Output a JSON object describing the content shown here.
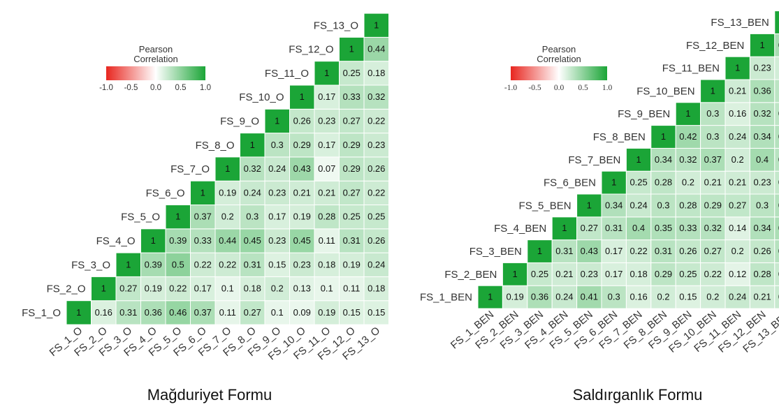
{
  "legend": {
    "title_line1": "Pearson",
    "title_line2": "Correlation",
    "ticks": [
      "-1.0",
      "-0.5",
      "0.0",
      "0.5",
      "1.0"
    ]
  },
  "colors": {
    "negative": "#e8261f",
    "zero": "#ffffff",
    "positive": "#1ba537",
    "diagonal": "#1ba537"
  },
  "chart_data": [
    {
      "type": "heatmap",
      "title": "Mağduriyet Formu",
      "variables": [
        "FS_1_O",
        "FS_2_O",
        "FS_3_O",
        "FS_4_O",
        "FS_5_O",
        "FS_6_O",
        "FS_7_O",
        "FS_8_O",
        "FS_9_O",
        "FS_10_O",
        "FS_11_O",
        "FS_12_O",
        "FS_13_O"
      ],
      "value_range": [
        -1.0,
        1.0
      ],
      "rows": [
        [
          1,
          0.16,
          0.31,
          0.36,
          0.46,
          0.37,
          0.11,
          0.27,
          0.1,
          0.09,
          0.19,
          0.15,
          0.15
        ],
        [
          1,
          0.27,
          0.19,
          0.22,
          0.17,
          0.1,
          0.18,
          0.2,
          0.13,
          0.1,
          0.11,
          0.18
        ],
        [
          1,
          0.39,
          0.5,
          0.22,
          0.22,
          0.31,
          0.15,
          0.23,
          0.18,
          0.19,
          0.24
        ],
        [
          1,
          0.39,
          0.33,
          0.44,
          0.45,
          0.23,
          0.45,
          0.11,
          0.31,
          0.26
        ],
        [
          1,
          0.37,
          0.2,
          0.3,
          0.17,
          0.19,
          0.28,
          0.25,
          0.25
        ],
        [
          1,
          0.19,
          0.24,
          0.23,
          0.21,
          0.21,
          0.27,
          0.22
        ],
        [
          1,
          0.32,
          0.24,
          0.43,
          0.07,
          0.29,
          0.26
        ],
        [
          1,
          0.3,
          0.29,
          0.17,
          0.29,
          0.23
        ],
        [
          1,
          0.26,
          0.23,
          0.27,
          0.22
        ],
        [
          1,
          0.17,
          0.33,
          0.32
        ],
        [
          1,
          0.25,
          0.18
        ],
        [
          1,
          0.44
        ],
        [
          1
        ]
      ]
    },
    {
      "type": "heatmap",
      "title": "Saldırganlık Formu",
      "variables": [
        "FS_1_BEN",
        "FS_2_BEN",
        "FS_3_BEN",
        "FS_4_BEN",
        "FS_5_BEN",
        "FS_6_BEN",
        "FS_7_BEN",
        "FS_8_BEN",
        "FS_9_BEN",
        "FS_10_BEN",
        "FS_11_BEN",
        "FS_12_BEN",
        "FS_13_BEN"
      ],
      "value_range": [
        -1.0,
        1.0
      ],
      "rows": [
        [
          1,
          0.19,
          0.36,
          0.24,
          0.41,
          0.3,
          0.16,
          0.2,
          0.15,
          0.2,
          0.24,
          0.21,
          0.24
        ],
        [
          1,
          0.25,
          0.21,
          0.23,
          0.17,
          0.18,
          0.29,
          0.25,
          0.22,
          0.12,
          0.28,
          0.24
        ],
        [
          1,
          0.31,
          0.43,
          0.17,
          0.22,
          0.31,
          0.26,
          0.27,
          0.2,
          0.26,
          0.32
        ],
        [
          1,
          0.27,
          0.31,
          0.4,
          0.35,
          0.33,
          0.32,
          0.14,
          0.34,
          0.37
        ],
        [
          1,
          0.34,
          0.24,
          0.3,
          0.28,
          0.29,
          0.27,
          0.3,
          0.33
        ],
        [
          1,
          0.25,
          0.28,
          0.2,
          0.21,
          0.21,
          0.23,
          0.26
        ],
        [
          1,
          0.34,
          0.32,
          0.37,
          0.2,
          0.4,
          0.31
        ],
        [
          1,
          0.42,
          0.3,
          0.24,
          0.34,
          0.33
        ],
        [
          1,
          0.3,
          0.16,
          0.32,
          0.29
        ],
        [
          1,
          0.21,
          0.36,
          0.3
        ],
        [
          1,
          0.23,
          0.2
        ],
        [
          1,
          0.38
        ],
        [
          1
        ]
      ]
    }
  ]
}
